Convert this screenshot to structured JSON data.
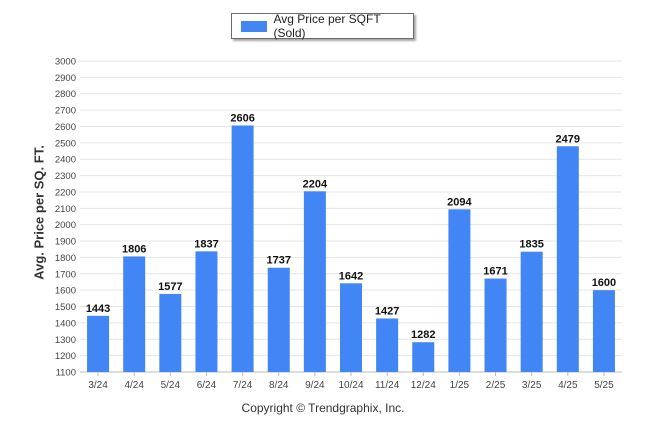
{
  "chart_data": {
    "type": "bar",
    "categories": [
      "3/24",
      "4/24",
      "5/24",
      "6/24",
      "7/24",
      "8/24",
      "9/24",
      "10/24",
      "11/24",
      "12/24",
      "1/25",
      "2/25",
      "3/25",
      "4/25",
      "5/25"
    ],
    "series": [
      {
        "name": "Avg Price per SQFT (Sold)",
        "values": [
          1443,
          1806,
          1577,
          1837,
          2606,
          1737,
          2204,
          1642,
          1427,
          1282,
          2094,
          1671,
          1835,
          2479,
          1600
        ]
      }
    ],
    "ylabel": "Avg. Price per SQ. FT.",
    "xlabel": "",
    "ylim": [
      1100,
      3000
    ],
    "ytick_step": 100,
    "grid": true,
    "legend_position": "top-center",
    "bar_color": "#4285f4"
  },
  "footer": "Copyright © Trendgraphix, Inc."
}
